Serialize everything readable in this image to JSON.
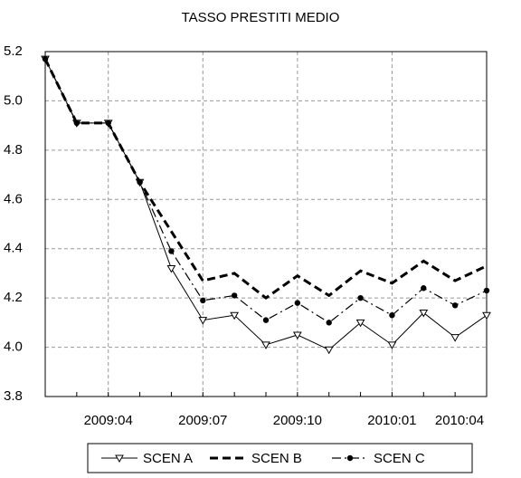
{
  "chart_data": {
    "type": "line",
    "title": "TASSO PRESTITI MEDIO",
    "categories": [
      null,
      null,
      "2009:04",
      null,
      null,
      "2009:07",
      null,
      null,
      "2009:10",
      null,
      null,
      "2010:01",
      null,
      null,
      "2010:04"
    ],
    "ylim": [
      3.8,
      5.2
    ],
    "yticks": [
      3.8,
      {
        "value": 4,
        "label": "4.0"
      },
      4.2,
      4.4,
      4.6,
      4.8,
      {
        "value": 5,
        "label": "5.0"
      },
      5.2
    ],
    "grid": true,
    "legend": "bottom",
    "series": [
      {
        "name": "SCEN A",
        "color": "#000000",
        "style": "solid",
        "marker": "triangle",
        "values": [
          5.17,
          4.91,
          4.91,
          4.67,
          4.32,
          4.11,
          4.13,
          4.01,
          4.05,
          3.99,
          4.1,
          4.01,
          4.14,
          4.04,
          4.13
        ]
      },
      {
        "name": "SCEN B",
        "color": "#000000",
        "style": "dashed",
        "marker": "none",
        "values": [
          5.17,
          4.91,
          4.91,
          4.67,
          4.47,
          4.27,
          4.3,
          4.2,
          4.29,
          4.21,
          4.31,
          4.26,
          4.35,
          4.27,
          4.33
        ]
      },
      {
        "name": "SCEN C",
        "color": "#000000",
        "style": "dashdot",
        "marker": "circle",
        "values": [
          5.17,
          4.91,
          4.91,
          4.67,
          4.39,
          4.19,
          4.21,
          4.11,
          4.18,
          4.1,
          4.2,
          4.13,
          4.24,
          4.17,
          4.23
        ]
      }
    ]
  }
}
